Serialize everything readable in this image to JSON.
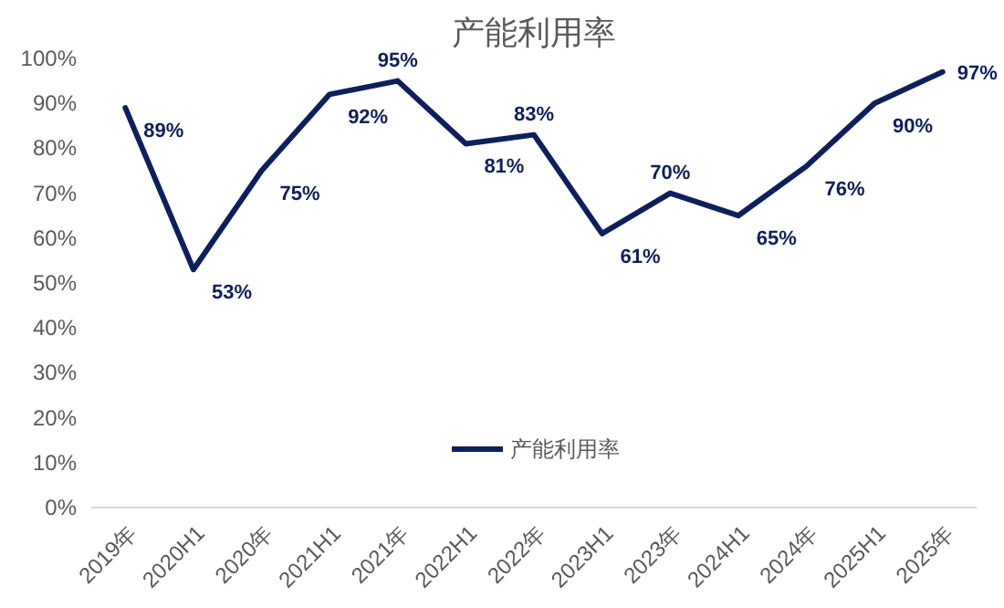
{
  "chart_data": {
    "type": "line",
    "title": "产能利用率",
    "categories": [
      "2019年",
      "2020H1",
      "2020年",
      "2021H1",
      "2021年",
      "2022H1",
      "2022年",
      "2023H1",
      "2023年",
      "2024H1",
      "2024年",
      "2025H1",
      "2025年"
    ],
    "series": [
      {
        "name": "产能利用率",
        "color": "#0d1f5c",
        "values": [
          89,
          53,
          75,
          92,
          95,
          81,
          83,
          61,
          70,
          65,
          76,
          90,
          97
        ]
      }
    ],
    "ylim": [
      0,
      100
    ],
    "yticks": [
      {
        "value": 0,
        "label": "0%"
      },
      {
        "value": 10,
        "label": "10%"
      },
      {
        "value": 20,
        "label": "20%"
      },
      {
        "value": 30,
        "label": "30%"
      },
      {
        "value": 40,
        "label": "40%"
      },
      {
        "value": 50,
        "label": "50%"
      },
      {
        "value": 60,
        "label": "60%"
      },
      {
        "value": 70,
        "label": "70%"
      },
      {
        "value": 80,
        "label": "80%"
      },
      {
        "value": 90,
        "label": "90%"
      },
      {
        "value": 100,
        "label": "100%"
      }
    ],
    "value_labels": [
      "89%",
      "53%",
      "75%",
      "92%",
      "95%",
      "81%",
      "83%",
      "61%",
      "70%",
      "65%",
      "76%",
      "90%",
      "97%"
    ],
    "legend": "bottom",
    "grid": false,
    "marker": "none",
    "line_style": "solid"
  }
}
